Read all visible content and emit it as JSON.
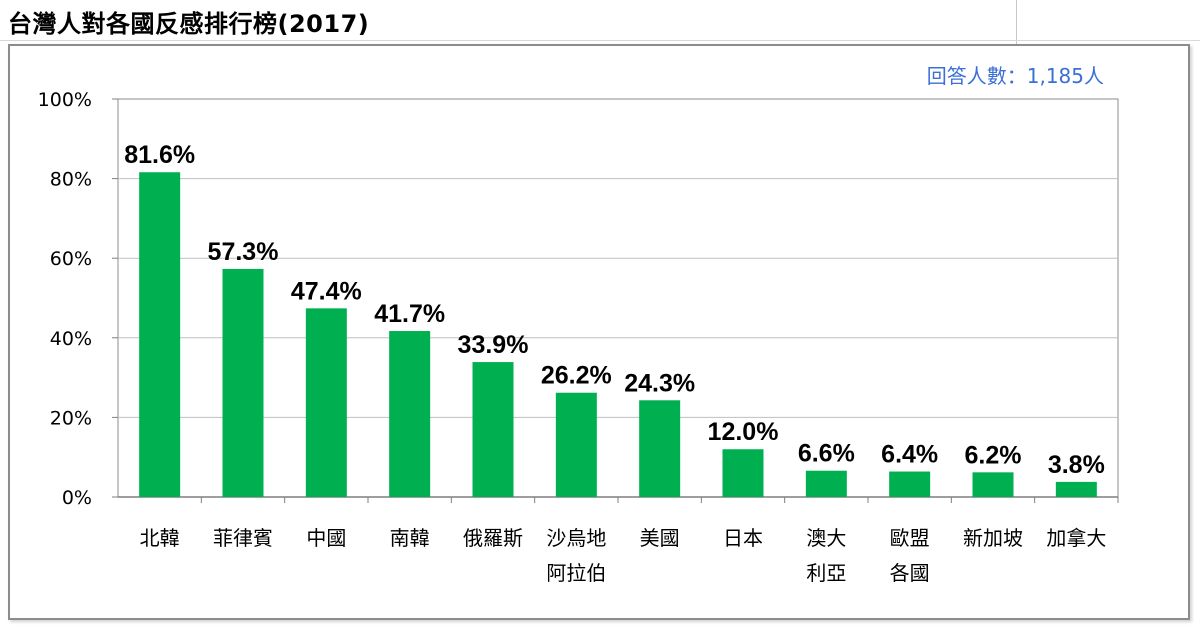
{
  "title": "台灣人對各國反感排行榜(2017)",
  "respondents_label": "回答人數：1,185人",
  "colors": {
    "bar": "#00b050",
    "grid": "#bfbfbf",
    "axis": "#7f7f7f",
    "respondents": "#3b6fd6"
  },
  "chart_data": {
    "type": "bar",
    "categories": [
      "北韓",
      "菲律賓",
      "中國",
      "南韓",
      "俄羅斯",
      "沙烏地阿拉伯",
      "美國",
      "日本",
      "澳大利亞",
      "歐盟各國",
      "新加坡",
      "加拿大"
    ],
    "category_lines": [
      [
        "北韓"
      ],
      [
        "菲律賓"
      ],
      [
        "中國"
      ],
      [
        "南韓"
      ],
      [
        "俄羅斯"
      ],
      [
        "沙烏地",
        "阿拉伯"
      ],
      [
        "美國"
      ],
      [
        "日本"
      ],
      [
        "澳大",
        "利亞"
      ],
      [
        "歐盟",
        "各國"
      ],
      [
        "新加坡"
      ],
      [
        "加拿大"
      ]
    ],
    "values": [
      81.6,
      57.3,
      47.4,
      41.7,
      33.9,
      26.2,
      24.3,
      12.0,
      6.6,
      6.4,
      6.2,
      3.8
    ],
    "value_labels": [
      "81.6%",
      "57.3%",
      "47.4%",
      "41.7%",
      "33.9%",
      "26.2%",
      "24.3%",
      "12.0%",
      "6.6%",
      "6.4%",
      "6.2%",
      "3.8%"
    ],
    "ylim": [
      0,
      100
    ],
    "yticks": [
      0,
      20,
      40,
      60,
      80,
      100
    ],
    "ytick_labels": [
      "0%",
      "20%",
      "40%",
      "60%",
      "80%",
      "100%"
    ],
    "grid": true,
    "legend": "none"
  }
}
